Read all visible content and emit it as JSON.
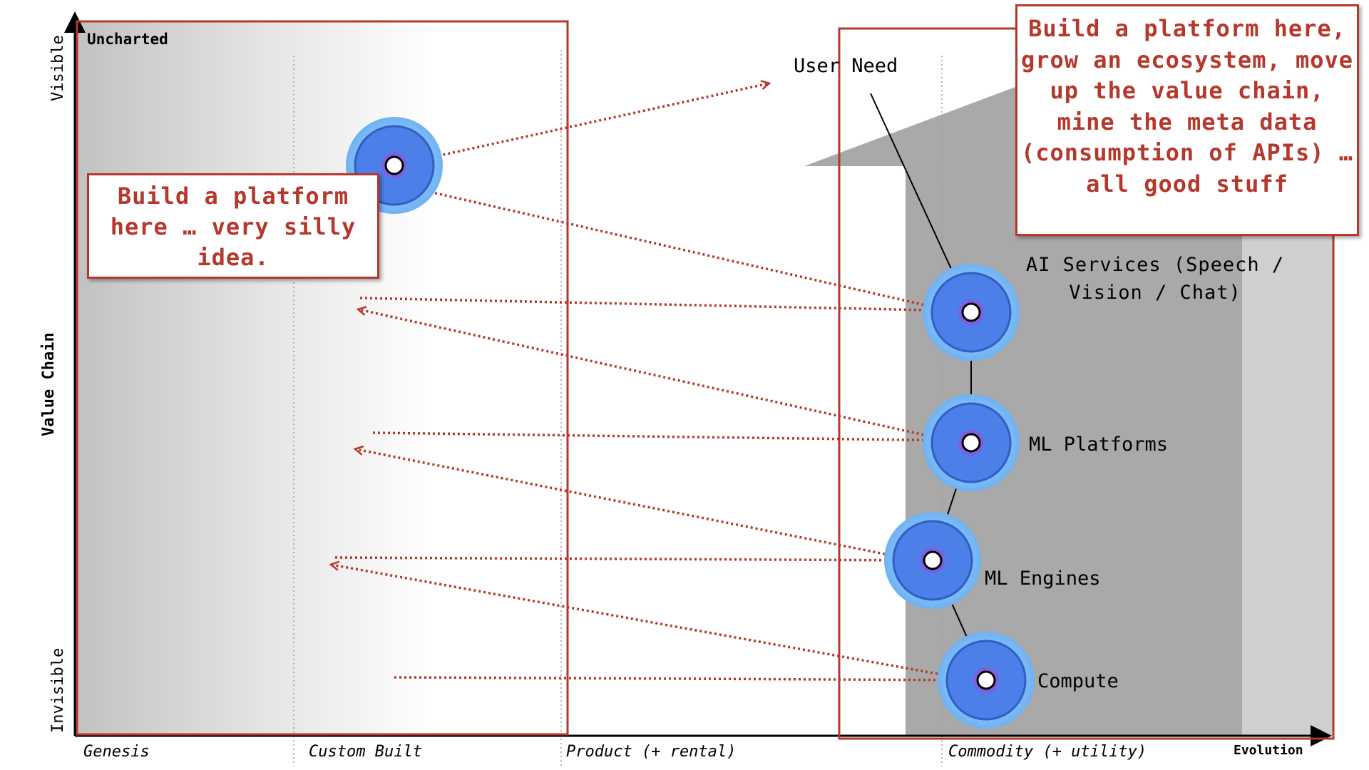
{
  "map": {
    "y_axis": {
      "top": "Visible",
      "middle": "Value Chain",
      "bottom": "Invisible"
    },
    "x_axis": {
      "stages": [
        "Genesis",
        "Custom Built",
        "Product (+ rental)",
        "Commodity (+ utility)"
      ],
      "end_label": "Evolution"
    },
    "region_label": "Uncharted",
    "components": [
      {
        "name": "User Need"
      },
      {
        "name": "AI Services (Speech / Vision / Chat)"
      },
      {
        "name": "ML Platforms"
      },
      {
        "name": "ML Engines"
      },
      {
        "name": "Compute"
      }
    ],
    "notes": {
      "left": "Build a platform here … very silly idea.",
      "right": "Build a platform here, grow an ecosystem, move up the value chain, mine the meta data (consumption of APIs) … all good stuff"
    },
    "colors": {
      "annotation": "#b5382c",
      "node_fill": "#4d7fe8",
      "node_halo": "#7fb8f5",
      "axis": "#000000"
    }
  }
}
